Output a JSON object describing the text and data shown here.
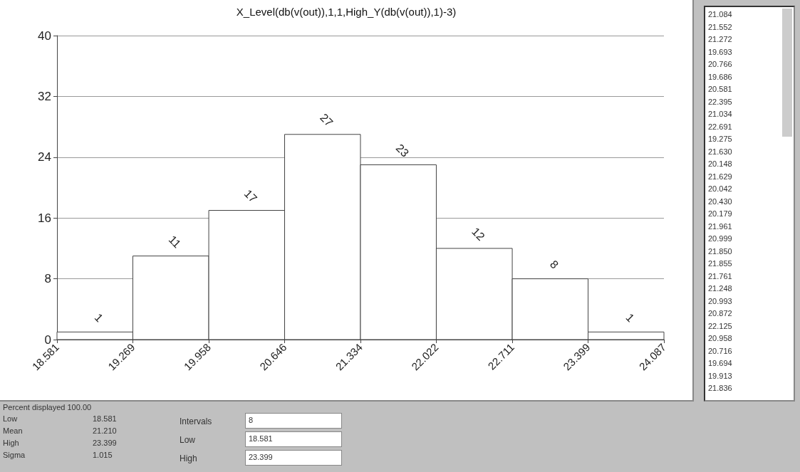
{
  "chart_data": {
    "type": "histogram",
    "title": "X_Level(db(v(out)),1,1,High_Y(db(v(out)),1)-3)",
    "bins": [
      18.581,
      19.269,
      19.958,
      20.646,
      21.334,
      22.022,
      22.711,
      23.399,
      24.087
    ],
    "values": [
      1,
      11,
      17,
      27,
      23,
      12,
      8,
      1
    ],
    "color": "#ffffff",
    "data_labels": true,
    "xlim": [
      18.581,
      24.087
    ],
    "xticks": [
      18.581,
      19.269,
      19.958,
      20.646,
      21.334,
      22.022,
      22.711,
      23.399,
      24.087
    ],
    "ylim": [
      0,
      40
    ],
    "yticks": [
      0,
      8,
      16,
      24,
      32,
      40
    ],
    "grid": "y",
    "annotations": [
      "21.084",
      "21.552",
      "21.272",
      "19.693",
      "20.766",
      "19.686",
      "20.581",
      "22.395",
      "21.034",
      "22.691",
      "19.275",
      "21.630",
      "20.148",
      "21.629",
      "20.042",
      "20.430",
      "20.179",
      "21.961",
      "20.999",
      "21.850",
      "21.855",
      "21.761",
      "21.248",
      "20.993",
      "20.872",
      "22.125",
      "20.958",
      "20.716",
      "19.694",
      "19.913",
      "21.836",
      "Percent displayed 100.00",
      "Low",
      "18.581",
      "Mean",
      "21.210",
      "High",
      "23.399",
      "Sigma",
      "1.015",
      "Intervals",
      "8",
      "Low",
      "18.581",
      "High",
      "23.399"
    ]
  }
}
